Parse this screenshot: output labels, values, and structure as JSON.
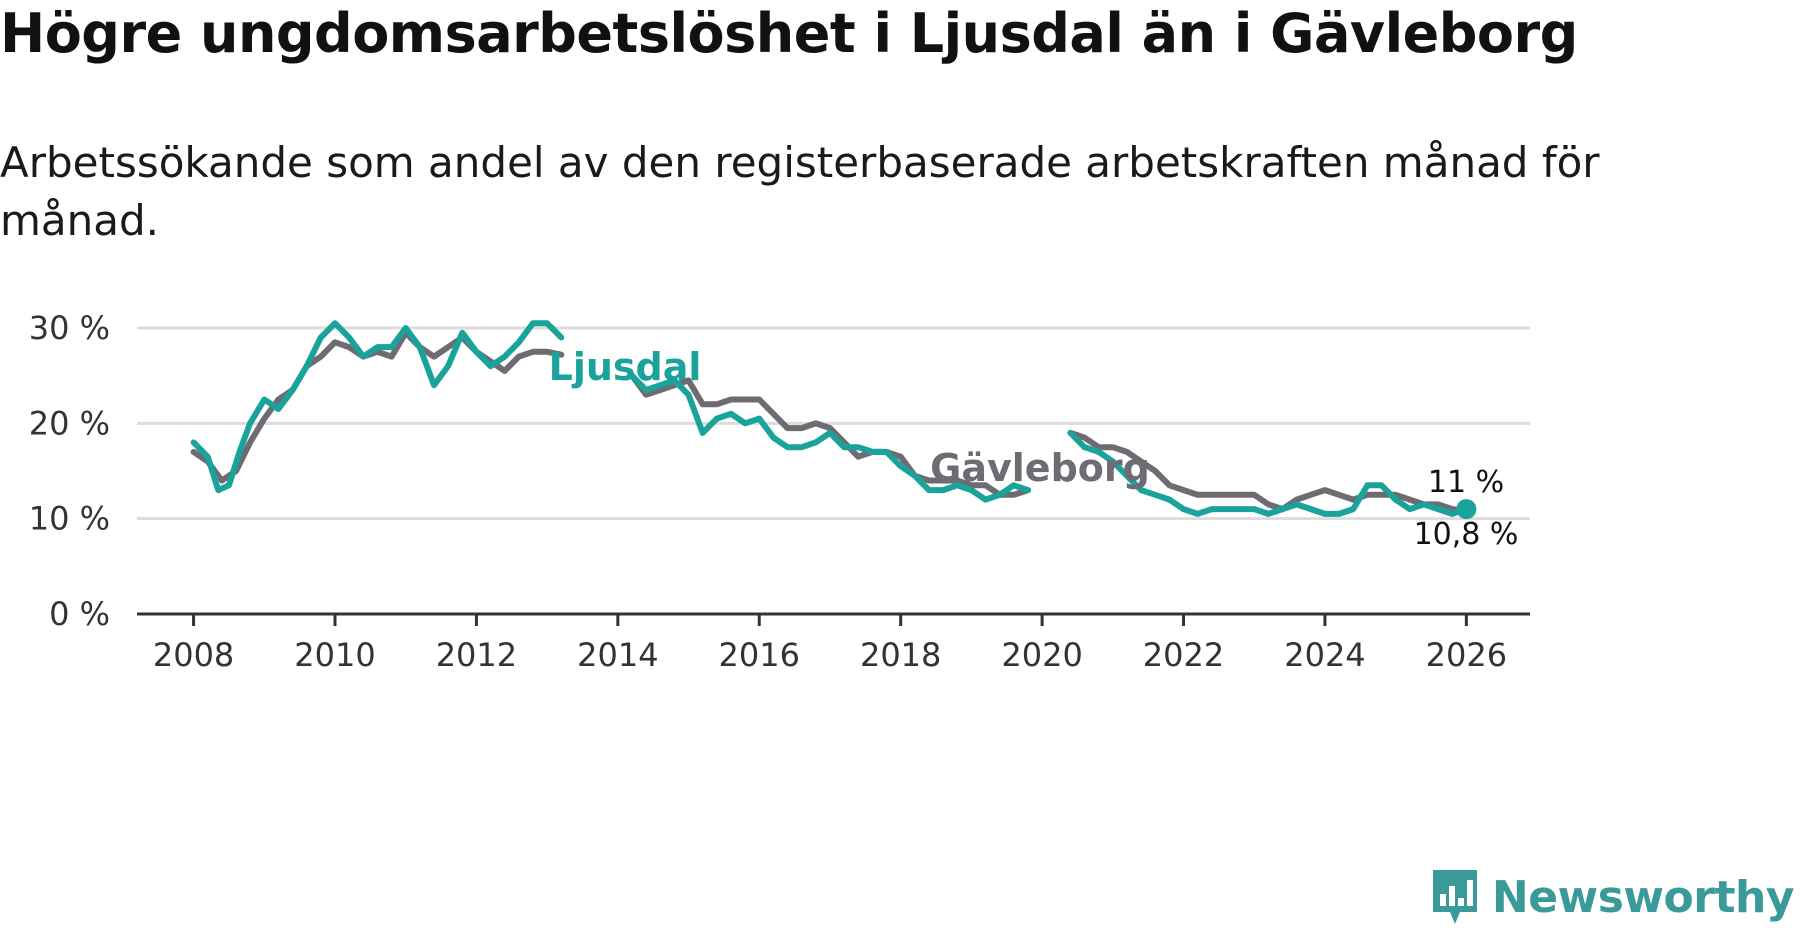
{
  "title": "Högre ungdomsarbetslöshet i Ljusdal än i Gävleborg",
  "subtitle": "Arbetssökande som andel av den registerbaserade arbetskraften månad för månad.",
  "brand": {
    "name": "Newsworthy",
    "color": "#3a9a9a"
  },
  "chart_data": {
    "type": "line",
    "title": "Högre ungdomsarbetslöshet i Ljusdal än i Gävleborg",
    "xlabel": "",
    "ylabel": "",
    "ylim": [
      0,
      30
    ],
    "xlim": [
      2007.2,
      2026.9
    ],
    "yticks": [
      0,
      10,
      20,
      30
    ],
    "ytick_labels": [
      "0 %",
      "10 %",
      "20 %",
      "30 %"
    ],
    "xticks": [
      2008,
      2010,
      2012,
      2014,
      2016,
      2018,
      2020,
      2022,
      2024,
      2026
    ],
    "xtick_labels": [
      "2008",
      "2010",
      "2012",
      "2014",
      "2016",
      "2018",
      "2020",
      "2022",
      "2024",
      "2026"
    ],
    "grid": true,
    "series": [
      {
        "name": "Gävleborg",
        "color": "#6e6b73",
        "label": "Gävleborg",
        "end_label": "10,8 %",
        "x": [
          2008.0,
          2008.2,
          2008.4,
          2008.6,
          2008.8,
          2009.0,
          2009.2,
          2009.4,
          2009.6,
          2009.8,
          2010.0,
          2010.2,
          2010.4,
          2010.6,
          2010.8,
          2011.0,
          2011.2,
          2011.4,
          2011.6,
          2011.8,
          2012.0,
          2012.2,
          2012.4,
          2012.6,
          2012.8,
          2013.0,
          2013.2,
          2014.2,
          2014.4,
          2014.6,
          2014.8,
          2015.0,
          2015.2,
          2015.4,
          2015.6,
          2015.8,
          2016.0,
          2016.2,
          2016.4,
          2016.6,
          2016.8,
          2017.0,
          2017.2,
          2017.4,
          2017.6,
          2017.8,
          2018.0,
          2018.2,
          2018.4,
          2018.6,
          2018.8,
          2019.0,
          2019.2,
          2019.4,
          2019.6,
          2019.8,
          2020.4,
          2020.6,
          2020.8,
          2021.0,
          2021.2,
          2021.4,
          2021.6,
          2021.8,
          2022.0,
          2022.2,
          2022.4,
          2022.6,
          2022.8,
          2023.0,
          2023.2,
          2023.4,
          2023.6,
          2023.8,
          2024.0,
          2024.2,
          2024.4,
          2024.6,
          2024.8,
          2025.0,
          2025.2,
          2025.4,
          2025.6,
          2025.8,
          2026.0
        ],
        "y": [
          17.0,
          16.0,
          14.0,
          15.0,
          18.0,
          20.5,
          22.5,
          23.5,
          26.0,
          27.0,
          28.5,
          28.0,
          27.0,
          27.5,
          27.0,
          29.5,
          28.0,
          27.0,
          28.0,
          29.0,
          27.5,
          26.5,
          25.5,
          27.0,
          27.5,
          27.5,
          27.2,
          25.0,
          23.0,
          23.5,
          24.0,
          24.5,
          22.0,
          22.0,
          22.5,
          22.5,
          22.5,
          21.0,
          19.5,
          19.5,
          20.0,
          19.5,
          18.0,
          16.5,
          17.0,
          17.0,
          16.5,
          14.5,
          14.0,
          14.0,
          14.0,
          13.5,
          13.5,
          12.5,
          12.5,
          13.0,
          19.0,
          18.5,
          17.5,
          17.5,
          17.0,
          16.0,
          15.0,
          13.5,
          13.0,
          12.5,
          12.5,
          12.5,
          12.5,
          12.5,
          11.5,
          11.0,
          12.0,
          12.5,
          13.0,
          12.5,
          12.0,
          12.5,
          12.5,
          12.5,
          12.0,
          11.5,
          11.5,
          11.0,
          10.8
        ]
      },
      {
        "name": "Ljusdal",
        "color": "#1aa39a",
        "label": "Ljusdal",
        "end_label": "11 %",
        "x": [
          2008.0,
          2008.2,
          2008.35,
          2008.5,
          2008.65,
          2008.8,
          2009.0,
          2009.2,
          2009.4,
          2009.6,
          2009.8,
          2010.0,
          2010.2,
          2010.4,
          2010.6,
          2010.8,
          2011.0,
          2011.2,
          2011.4,
          2011.6,
          2011.8,
          2012.0,
          2012.2,
          2012.4,
          2012.6,
          2012.8,
          2013.0,
          2013.2,
          2014.2,
          2014.4,
          2014.6,
          2014.8,
          2015.0,
          2015.2,
          2015.4,
          2015.6,
          2015.8,
          2016.0,
          2016.2,
          2016.4,
          2016.6,
          2016.8,
          2017.0,
          2017.2,
          2017.4,
          2017.6,
          2017.8,
          2018.0,
          2018.2,
          2018.4,
          2018.6,
          2018.8,
          2019.0,
          2019.2,
          2019.4,
          2019.6,
          2019.8,
          2020.4,
          2020.6,
          2020.8,
          2021.0,
          2021.2,
          2021.4,
          2021.6,
          2021.8,
          2022.0,
          2022.2,
          2022.4,
          2022.6,
          2022.8,
          2023.0,
          2023.2,
          2023.4,
          2023.6,
          2023.8,
          2024.0,
          2024.2,
          2024.4,
          2024.6,
          2024.8,
          2025.0,
          2025.2,
          2025.4,
          2025.6,
          2025.8,
          2026.0
        ],
        "y": [
          18.0,
          16.5,
          13.0,
          13.5,
          17.0,
          20.0,
          22.5,
          21.5,
          23.5,
          26.0,
          29.0,
          30.5,
          29.0,
          27.0,
          28.0,
          28.0,
          30.0,
          28.0,
          24.0,
          26.0,
          29.5,
          27.5,
          26.0,
          27.0,
          28.5,
          30.5,
          30.5,
          29.0,
          25.0,
          23.5,
          24.0,
          24.5,
          23.0,
          19.0,
          20.5,
          21.0,
          20.0,
          20.5,
          18.5,
          17.5,
          17.5,
          18.0,
          19.0,
          17.5,
          17.5,
          17.0,
          17.0,
          15.5,
          14.5,
          13.0,
          13.0,
          13.5,
          13.0,
          12.0,
          12.5,
          13.5,
          13.0,
          19.0,
          17.5,
          17.0,
          16.0,
          14.5,
          13.0,
          12.5,
          12.0,
          11.0,
          10.5,
          11.0,
          11.0,
          11.0,
          11.0,
          10.5,
          11.0,
          11.5,
          11.0,
          10.5,
          10.5,
          11.0,
          13.5,
          13.5,
          12.0,
          11.0,
          11.5,
          11.0,
          10.5,
          11.0
        ]
      }
    ]
  }
}
